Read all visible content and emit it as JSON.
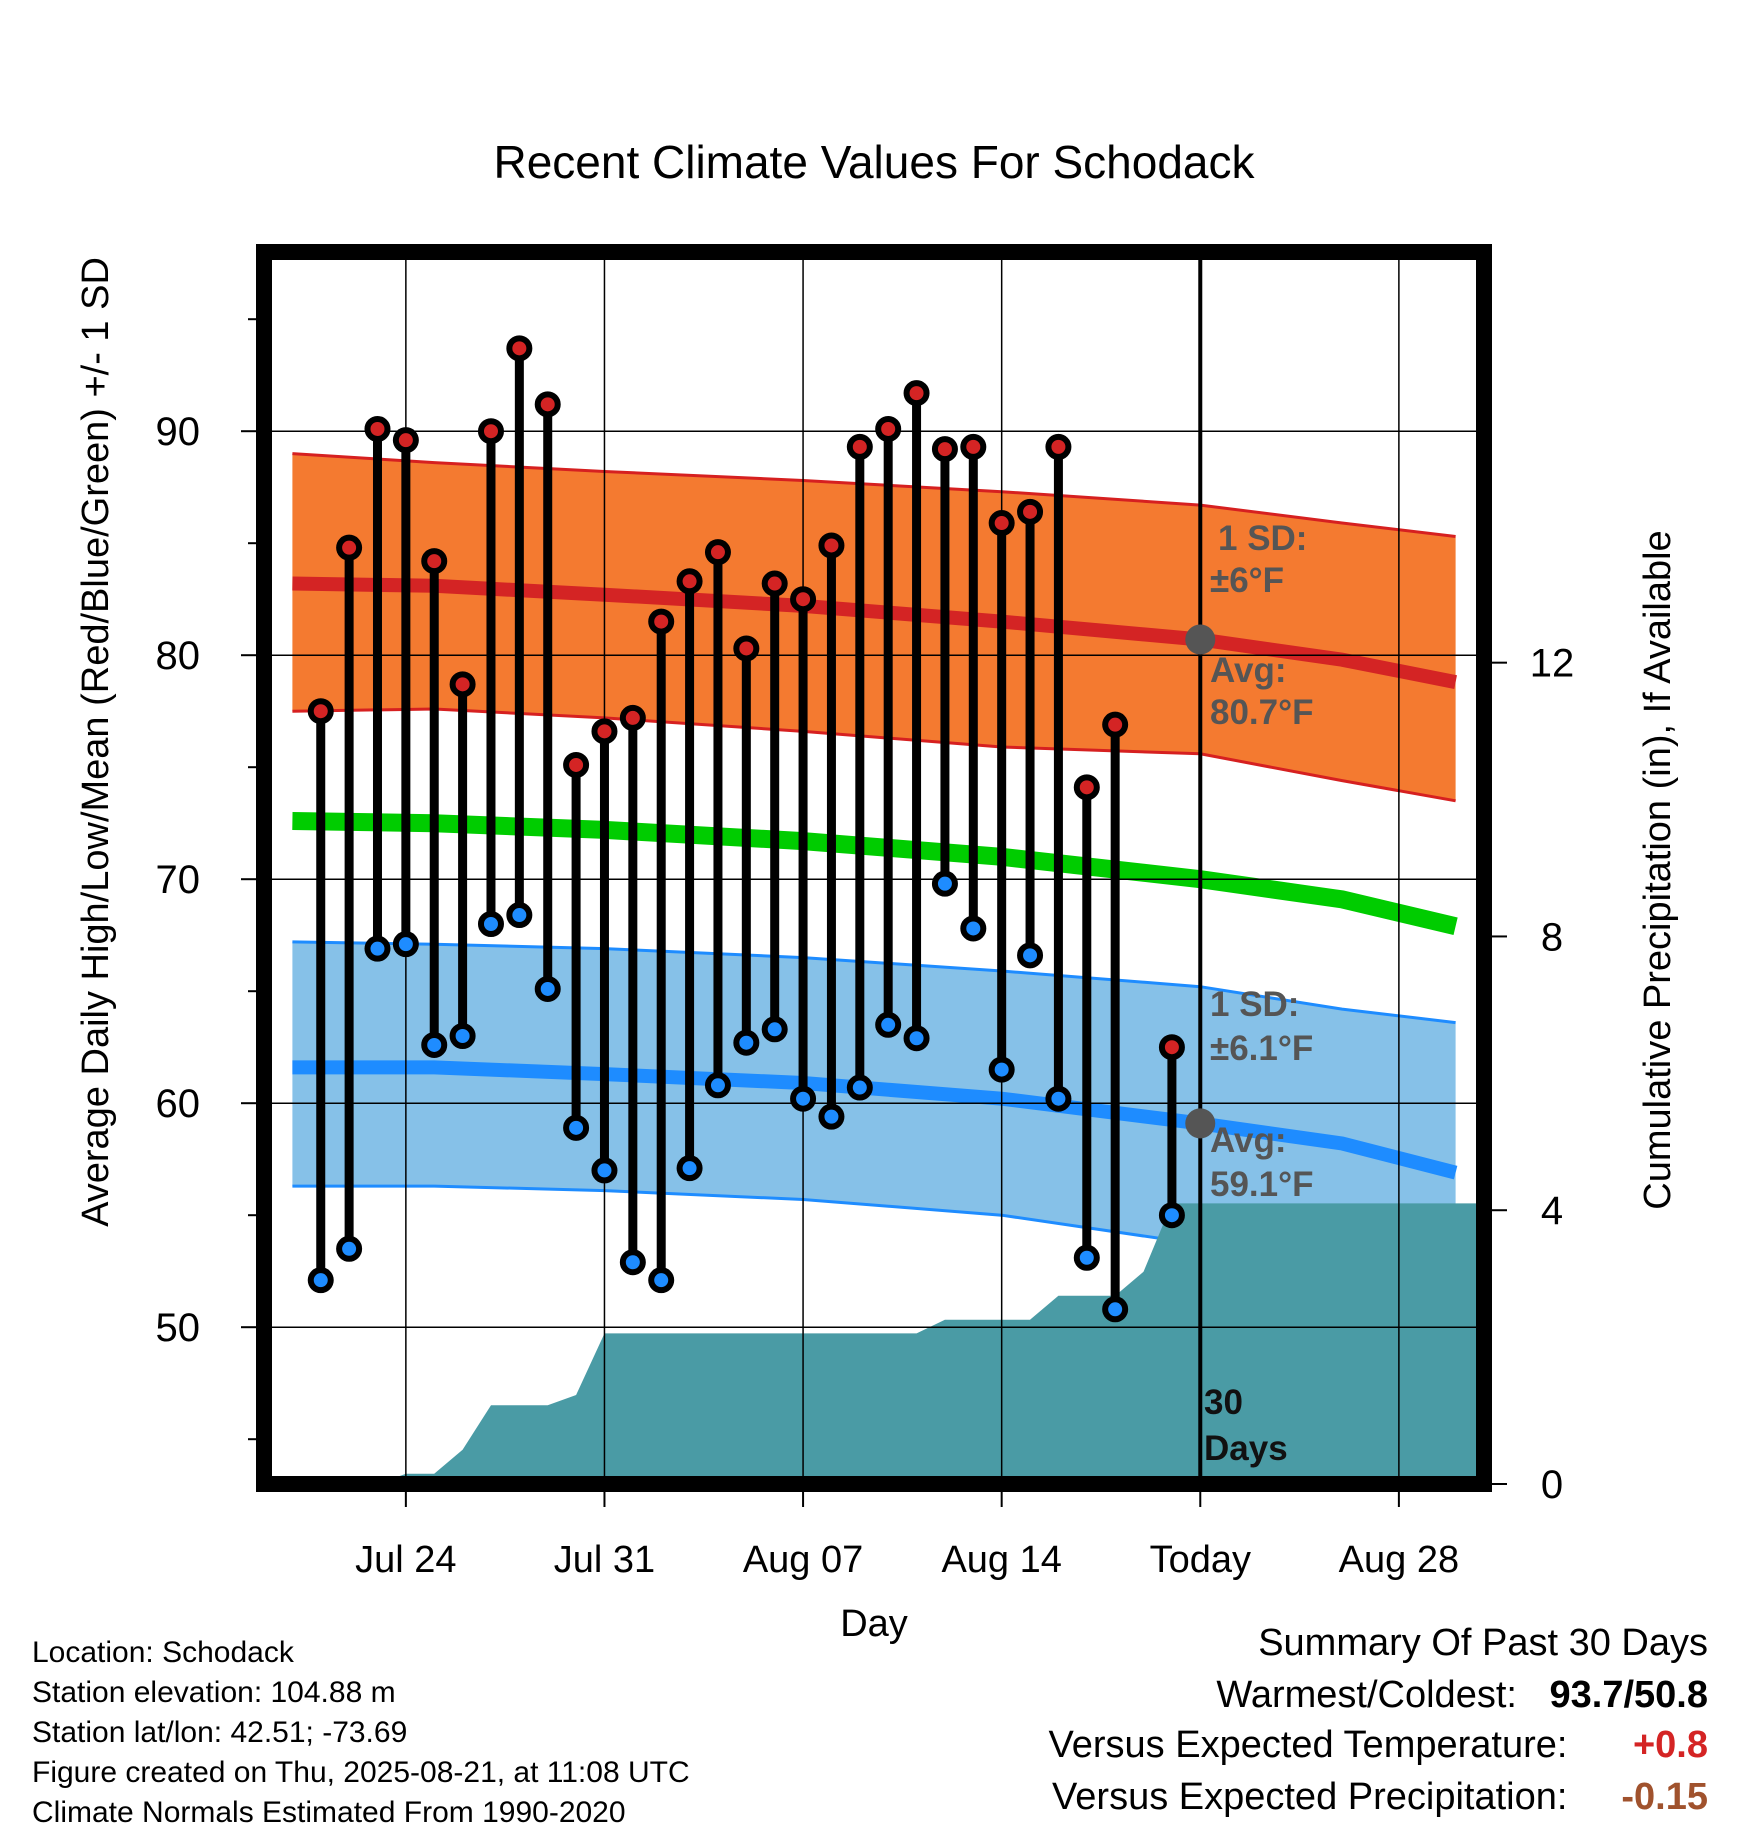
{
  "chart_data": {
    "type": "line",
    "title": "Recent Climate Values For Schodack",
    "xlabel": "Day",
    "ylabel_left": "Average Daily High/Low/Mean (Red/Blue/Green) +/- 1 SD",
    "ylabel_right": "Cumulative Precipitation (in), If Available",
    "ylim_left": [
      43,
      98
    ],
    "ylim_right": [
      0,
      18
    ],
    "xlim": [
      "2025-07-19",
      "2025-08-31"
    ],
    "x_ticks": [
      {
        "date": "2025-07-24",
        "label": "Jul 24"
      },
      {
        "date": "2025-07-31",
        "label": "Jul 31"
      },
      {
        "date": "2025-08-07",
        "label": "Aug 07"
      },
      {
        "date": "2025-08-14",
        "label": "Aug 14"
      },
      {
        "date": "2025-08-21",
        "label": "Today"
      },
      {
        "date": "2025-08-28",
        "label": "Aug 28"
      }
    ],
    "y_ticks_left": [
      50,
      60,
      70,
      80,
      90
    ],
    "y_ticks_right": [
      0,
      4,
      8,
      12
    ],
    "grid": true,
    "today": "2025-08-21",
    "days": [
      "2025-07-21",
      "2025-07-22",
      "2025-07-23",
      "2025-07-24",
      "2025-07-25",
      "2025-07-26",
      "2025-07-27",
      "2025-07-28",
      "2025-07-29",
      "2025-07-30",
      "2025-07-31",
      "2025-08-01",
      "2025-08-02",
      "2025-08-03",
      "2025-08-04",
      "2025-08-05",
      "2025-08-06",
      "2025-08-07",
      "2025-08-08",
      "2025-08-09",
      "2025-08-10",
      "2025-08-11",
      "2025-08-12",
      "2025-08-13",
      "2025-08-14",
      "2025-08-15",
      "2025-08-16",
      "2025-08-17",
      "2025-08-18",
      "2025-08-19",
      "2025-08-20"
    ],
    "daily_high": [
      77.5,
      84.8,
      90.1,
      89.6,
      84.2,
      78.7,
      90.0,
      93.7,
      91.2,
      75.1,
      76.6,
      77.2,
      81.5,
      83.3,
      84.6,
      80.3,
      83.2,
      82.5,
      84.9,
      89.3,
      90.1,
      91.7,
      89.2,
      89.3,
      85.9,
      86.4,
      89.3,
      74.1,
      76.9,
      null,
      62.5
    ],
    "daily_low": [
      52.1,
      53.5,
      66.9,
      67.1,
      62.6,
      63.0,
      68.0,
      68.4,
      65.1,
      58.9,
      57.0,
      52.9,
      52.1,
      57.1,
      60.8,
      62.7,
      63.3,
      60.2,
      59.4,
      60.7,
      63.5,
      62.9,
      69.8,
      67.8,
      61.5,
      66.6,
      60.2,
      53.1,
      50.8,
      null,
      55.0
    ],
    "normal_days": [
      "2025-07-20",
      "2025-07-25",
      "2025-07-31",
      "2025-08-07",
      "2025-08-14",
      "2025-08-21",
      "2025-08-26",
      "2025-08-30"
    ],
    "avg_high": [
      83.2,
      83.1,
      82.7,
      82.2,
      81.5,
      80.7,
      79.8,
      78.8
    ],
    "avg_high_upper": [
      89.0,
      88.6,
      88.2,
      87.8,
      87.3,
      86.7,
      85.9,
      85.3
    ],
    "avg_high_lower": [
      77.5,
      77.6,
      77.2,
      76.6,
      75.9,
      75.6,
      74.4,
      73.5
    ],
    "avg_mean": [
      72.6,
      72.5,
      72.2,
      71.7,
      71.0,
      70.0,
      69.1,
      67.9
    ],
    "avg_low": [
      61.6,
      61.6,
      61.3,
      60.9,
      60.2,
      59.1,
      58.2,
      56.9
    ],
    "avg_low_upper": [
      67.2,
      67.1,
      66.9,
      66.5,
      65.9,
      65.2,
      64.2,
      63.6
    ],
    "avg_low_lower": [
      56.3,
      56.3,
      56.1,
      55.7,
      55.0,
      53.7,
      52.6,
      51.6
    ],
    "precip_cumulative": {
      "x": [
        "2025-07-19",
        "2025-07-23",
        "2025-07-24",
        "2025-07-25",
        "2025-07-26",
        "2025-07-27",
        "2025-07-29",
        "2025-07-30",
        "2025-07-31",
        "2025-08-11",
        "2025-08-12",
        "2025-08-15",
        "2025-08-16",
        "2025-08-18",
        "2025-08-19",
        "2025-08-20",
        "2025-08-31"
      ],
      "y": [
        0,
        0,
        0.15,
        0.15,
        0.5,
        1.15,
        1.15,
        1.3,
        2.2,
        2.2,
        2.4,
        2.4,
        2.75,
        2.75,
        3.1,
        4.1,
        4.1
      ]
    },
    "annotations": {
      "high_sd": "1 SD:",
      "high_sd_val": "±6°F",
      "high_avg": "Avg:",
      "high_avg_val": "80.7°F",
      "low_sd": "1 SD:",
      "low_sd_val": "±6.1°F",
      "low_avg": "Avg:",
      "low_avg_val": "59.1°F",
      "days_num": "30",
      "days_word": "Days"
    },
    "colors": {
      "high_band": "#f47a30",
      "high_band_edge": "#d62020",
      "avg_high_line": "#d42424",
      "mean_line": "#00cc00",
      "low_band": "#86c1e8",
      "low_band_edge": "#1e8cff",
      "avg_low_line": "#1e8cff",
      "precip": "#4a9ba5",
      "high_dot": "#d42424",
      "low_dot": "#1e8cff",
      "today_dot": "#555555",
      "annot_text": "#555555"
    }
  },
  "info": {
    "location": "Location: Schodack",
    "elevation": "Station elevation: 104.88 m",
    "latlon": "Station lat/lon: 42.51; -73.69",
    "created": "Figure created on Thu, 2025-08-21, at 11:08 UTC",
    "normals": "Climate Normals Estimated From 1990-2020"
  },
  "summary": {
    "title": "Summary Of Past 30 Days",
    "warmest_label": "Warmest/Coldest:",
    "warmest_value": "93.7/50.8",
    "temp_label": "Versus Expected Temperature:",
    "temp_value": "+0.8",
    "temp_color": "#d42424",
    "precip_label": "Versus Expected Precipitation:",
    "precip_value": "-0.15",
    "precip_color": "#a0522d"
  }
}
